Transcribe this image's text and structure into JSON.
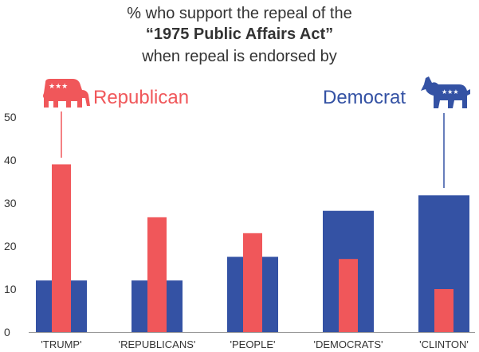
{
  "title": {
    "line1": "% who support the repeal of the",
    "line2": "“1975 Public Affairs Act”",
    "line3": "when repeal is endorsed by"
  },
  "parties": {
    "republican": {
      "label": "Republican",
      "color": "#f0575a",
      "icon": "elephant-icon"
    },
    "democrat": {
      "label": "Democrat",
      "color": "#3452a4",
      "icon": "donkey-icon"
    }
  },
  "chart_data": {
    "type": "bar",
    "categories": [
      "'TRUMP'",
      "'REPUBLICANS'",
      "'PEOPLE'",
      "'DEMOCRATS'",
      "'CLINTON'"
    ],
    "series": [
      {
        "name": "Democrat",
        "color": "#3452a4",
        "values": [
          12,
          12,
          17.5,
          28.2,
          31.8
        ]
      },
      {
        "name": "Republican",
        "color": "#f0575a",
        "values": [
          39,
          26.7,
          23,
          17,
          10
        ]
      }
    ],
    "yticks": [
      "0",
      "10",
      "20",
      "30",
      "40",
      "50"
    ],
    "ylim": [
      0,
      52
    ],
    "grid": false,
    "xlabel": "",
    "ylabel": ""
  }
}
